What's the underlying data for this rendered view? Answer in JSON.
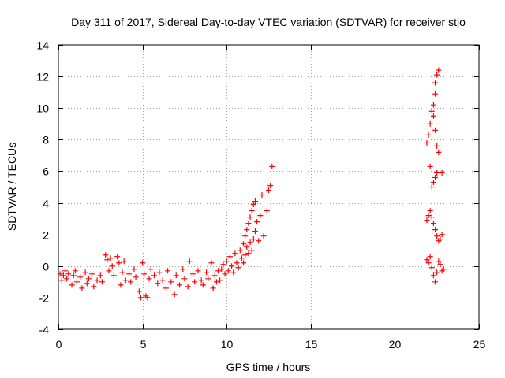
{
  "chart_data": {
    "type": "scatter",
    "title": "Day 311 of 2017, Sidereal Day-to-day VTEC variation (SDTVAR) for receiver stjo",
    "xlabel": "GPS time / hours",
    "ylabel": "SDTVAR / TECUs",
    "xlim": [
      0,
      25
    ],
    "ylim": [
      -4,
      14
    ],
    "xticks": [
      0,
      5,
      10,
      15,
      20,
      25
    ],
    "yticks": [
      -4,
      -2,
      0,
      2,
      4,
      6,
      8,
      10,
      12,
      14
    ],
    "grid": true,
    "marker": "+",
    "color": "#ff0000",
    "series": [
      {
        "name": "SDTVAR",
        "points": [
          [
            0.1,
            -0.5
          ],
          [
            0.2,
            -0.9
          ],
          [
            0.3,
            -0.6
          ],
          [
            0.4,
            -0.3
          ],
          [
            0.5,
            -0.8
          ],
          [
            0.6,
            -0.5
          ],
          [
            0.8,
            -1.2
          ],
          [
            0.9,
            -0.6
          ],
          [
            1.0,
            -0.3
          ],
          [
            1.1,
            -1.0
          ],
          [
            1.3,
            -0.7
          ],
          [
            1.4,
            -1.4
          ],
          [
            1.6,
            -0.4
          ],
          [
            1.7,
            -1.1
          ],
          [
            1.8,
            -0.8
          ],
          [
            2.0,
            -0.5
          ],
          [
            2.1,
            -1.3
          ],
          [
            2.3,
            -0.9
          ],
          [
            2.5,
            -0.6
          ],
          [
            2.6,
            -1.0
          ],
          [
            2.8,
            0.7
          ],
          [
            2.9,
            0.4
          ],
          [
            3.0,
            -0.3
          ],
          [
            3.1,
            0.5
          ],
          [
            3.2,
            0.0
          ],
          [
            3.3,
            -0.6
          ],
          [
            3.5,
            0.6
          ],
          [
            3.6,
            0.2
          ],
          [
            3.7,
            -1.2
          ],
          [
            3.8,
            -0.4
          ],
          [
            3.9,
            0.3
          ],
          [
            4.0,
            -0.9
          ],
          [
            4.2,
            -0.5
          ],
          [
            4.3,
            -1.0
          ],
          [
            4.5,
            -0.2
          ],
          [
            4.6,
            -0.7
          ],
          [
            4.8,
            -1.6
          ],
          [
            4.9,
            -2.0
          ],
          [
            5.0,
            0.2
          ],
          [
            5.1,
            -0.5
          ],
          [
            5.2,
            -1.9
          ],
          [
            5.3,
            -2.0
          ],
          [
            5.4,
            -0.8
          ],
          [
            5.5,
            -0.2
          ],
          [
            5.7,
            -0.6
          ],
          [
            5.9,
            -1.1
          ],
          [
            6.0,
            -0.4
          ],
          [
            6.2,
            -0.9
          ],
          [
            6.4,
            -1.4
          ],
          [
            6.5,
            -0.3
          ],
          [
            6.7,
            -1.0
          ],
          [
            6.9,
            -1.8
          ],
          [
            7.0,
            -0.6
          ],
          [
            7.2,
            -1.2
          ],
          [
            7.4,
            -0.2
          ],
          [
            7.5,
            -0.8
          ],
          [
            7.7,
            -1.3
          ],
          [
            7.8,
            0.3
          ],
          [
            8.0,
            -0.5
          ],
          [
            8.1,
            -1.0
          ],
          [
            8.3,
            -0.3
          ],
          [
            8.5,
            -0.9
          ],
          [
            8.6,
            -1.2
          ],
          [
            8.8,
            -0.4
          ],
          [
            8.9,
            -0.8
          ],
          [
            9.1,
            0.2
          ],
          [
            9.2,
            -1.4
          ],
          [
            9.3,
            -0.6
          ],
          [
            9.4,
            -1.0
          ],
          [
            9.5,
            -0.3
          ],
          [
            9.6,
            -0.9
          ],
          [
            9.7,
            -0.2
          ],
          [
            9.8,
            0.1
          ],
          [
            9.9,
            -0.5
          ],
          [
            10.0,
            0.3
          ],
          [
            10.1,
            -0.3
          ],
          [
            10.2,
            0.6
          ],
          [
            10.3,
            0.0
          ],
          [
            10.4,
            -0.4
          ],
          [
            10.5,
            0.8
          ],
          [
            10.6,
            0.2
          ],
          [
            10.7,
            -0.1
          ],
          [
            10.8,
            1.0
          ],
          [
            10.9,
            0.5
          ],
          [
            11.0,
            1.4
          ],
          [
            11.0,
            0.2
          ],
          [
            11.1,
            1.9
          ],
          [
            11.1,
            0.7
          ],
          [
            11.2,
            2.3
          ],
          [
            11.2,
            1.2
          ],
          [
            11.3,
            2.7
          ],
          [
            11.3,
            0.8
          ],
          [
            11.4,
            3.1
          ],
          [
            11.4,
            1.5
          ],
          [
            11.5,
            3.5
          ],
          [
            11.5,
            1.0
          ],
          [
            11.6,
            3.9
          ],
          [
            11.6,
            1.7
          ],
          [
            11.7,
            4.1
          ],
          [
            11.7,
            2.2
          ],
          [
            11.8,
            2.8
          ],
          [
            11.9,
            1.6
          ],
          [
            12.0,
            3.2
          ],
          [
            12.1,
            4.5
          ],
          [
            12.2,
            1.9
          ],
          [
            12.4,
            3.5
          ],
          [
            12.5,
            4.8
          ],
          [
            12.6,
            5.1
          ],
          [
            12.7,
            6.3
          ],
          [
            21.9,
            0.4
          ],
          [
            22.0,
            0.2
          ],
          [
            22.1,
            0.6
          ],
          [
            22.2,
            -0.1
          ],
          [
            22.3,
            -0.6
          ],
          [
            22.4,
            -1.0
          ],
          [
            22.5,
            -0.4
          ],
          [
            22.6,
            0.3
          ],
          [
            22.7,
            0.1
          ],
          [
            22.8,
            -0.3
          ],
          [
            22.9,
            -0.2
          ],
          [
            21.9,
            2.9
          ],
          [
            22.0,
            3.2
          ],
          [
            22.1,
            3.5
          ],
          [
            22.2,
            3.1
          ],
          [
            22.3,
            2.7
          ],
          [
            22.4,
            2.3
          ],
          [
            22.5,
            1.9
          ],
          [
            22.6,
            1.6
          ],
          [
            22.7,
            1.7
          ],
          [
            22.8,
            2.0
          ],
          [
            22.2,
            5.0
          ],
          [
            22.3,
            5.3
          ],
          [
            22.4,
            5.6
          ],
          [
            22.5,
            5.9
          ],
          [
            22.8,
            5.9
          ],
          [
            21.9,
            7.8
          ],
          [
            22.0,
            8.3
          ],
          [
            22.1,
            9.0
          ],
          [
            22.1,
            6.3
          ],
          [
            22.2,
            9.8
          ],
          [
            22.3,
            9.5
          ],
          [
            22.4,
            8.6
          ],
          [
            22.5,
            7.6
          ],
          [
            22.6,
            7.2
          ],
          [
            22.3,
            10.2
          ],
          [
            22.4,
            10.9
          ],
          [
            22.4,
            11.6
          ],
          [
            22.5,
            12.1
          ],
          [
            22.6,
            12.4
          ]
        ]
      }
    ]
  }
}
